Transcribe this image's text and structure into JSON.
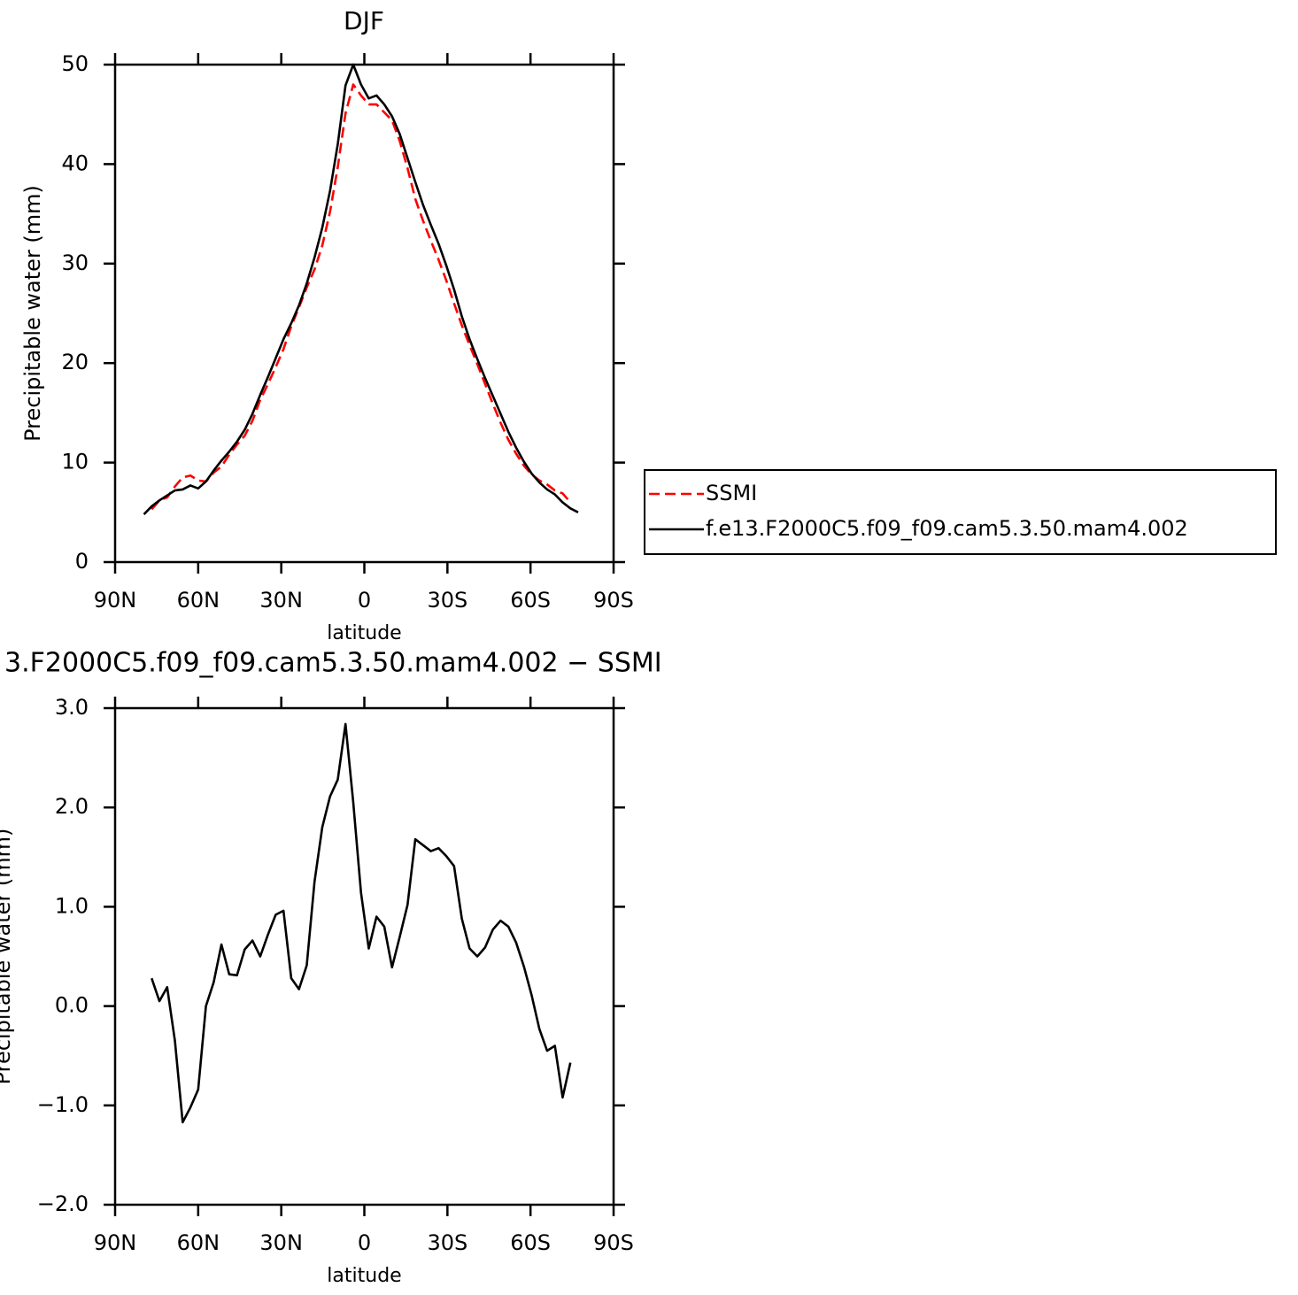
{
  "chart_data": [
    {
      "type": "line",
      "title": "DJF",
      "xlabel": "latitude",
      "ylabel": "Precipitable water (mm)",
      "x": [
        79.6,
        76.8,
        74.0,
        71.2,
        68.4,
        65.6,
        62.8,
        60.0,
        57.2,
        54.4,
        51.6,
        48.8,
        46.0,
        43.2,
        40.4,
        37.6,
        34.8,
        32.0,
        29.2,
        26.4,
        23.6,
        20.8,
        18.0,
        15.2,
        12.4,
        9.6,
        6.8,
        4.0,
        1.2,
        -1.6,
        -4.4,
        -7.2,
        -10.0,
        -12.8,
        -15.6,
        -18.4,
        -21.2,
        -24.0,
        -26.8,
        -29.6,
        -32.4,
        -35.2,
        -38.0,
        -40.8,
        -43.6,
        -46.4,
        -49.2,
        -52.0,
        -54.8,
        -57.6,
        -60.4,
        -63.2,
        -66.0,
        -68.8,
        -71.6,
        -74.4,
        -77.2
      ],
      "series": [
        {
          "name": "SSMI",
          "color": "#ff0000",
          "linestyle": "dashed",
          "values": [
            null,
            5.3,
            6.2,
            6.5,
            7.6,
            8.5,
            8.7,
            8.2,
            8.1,
            9.0,
            9.6,
            10.8,
            11.8,
            12.7,
            14.2,
            16.3,
            17.9,
            19.6,
            21.4,
            23.7,
            25.6,
            27.6,
            29.4,
            31.8,
            35.2,
            39.7,
            45.1,
            48.0,
            46.9,
            46.0,
            46.0,
            45.2,
            44.4,
            42.3,
            39.6,
            36.5,
            34.3,
            32.3,
            30.4,
            28.3,
            26.0,
            23.8,
            21.8,
            19.9,
            17.9,
            15.9,
            14.0,
            12.3,
            10.9,
            9.7,
            8.8,
            8.2,
            7.8,
            7.2,
            6.9,
            6.0,
            null
          ]
        },
        {
          "name": "f.e13.F2000C5.f09_f09.cam5.3.50.mam4.002",
          "color": "#000000",
          "linestyle": "solid",
          "values": [
            4.8,
            5.6,
            6.2,
            6.7,
            7.2,
            7.3,
            7.7,
            7.4,
            8.1,
            9.2,
            10.2,
            11.1,
            12.1,
            13.3,
            14.9,
            16.8,
            18.6,
            20.5,
            22.4,
            24.0,
            25.8,
            28.0,
            30.6,
            33.6,
            37.3,
            42.0,
            47.9,
            50.0,
            48.0,
            46.6,
            46.9,
            46.0,
            44.8,
            43.0,
            40.6,
            38.2,
            35.9,
            33.9,
            32.0,
            29.8,
            27.4,
            24.7,
            22.4,
            20.4,
            18.5,
            16.7,
            14.9,
            13.1,
            11.5,
            10.1,
            8.9,
            8.0,
            7.3,
            6.8,
            6.0,
            5.4,
            5.0
          ]
        }
      ],
      "xlim": [
        90,
        -90
      ],
      "xticks": [
        {
          "value": 90,
          "label": "90N"
        },
        {
          "value": 60,
          "label": "60N"
        },
        {
          "value": 30,
          "label": "30N"
        },
        0,
        {
          "value": -30,
          "label": "30S"
        },
        {
          "value": -60,
          "label": "60S"
        },
        {
          "value": -90,
          "label": "90S"
        }
      ],
      "ylim": [
        0,
        50
      ],
      "yticks": [
        0,
        10,
        20,
        30,
        40,
        50
      ],
      "legend": "right"
    },
    {
      "type": "line",
      "title": "3.F2000C5.f09_f09.cam5.3.50.mam4.002 − SSMI",
      "xlabel": "latitude",
      "ylabel": "Precipitable water (mm)",
      "x": [
        76.8,
        74.0,
        71.2,
        68.4,
        65.6,
        62.8,
        60.0,
        57.2,
        54.4,
        51.6,
        48.8,
        46.0,
        43.2,
        40.4,
        37.6,
        34.8,
        32.0,
        29.2,
        26.4,
        23.6,
        20.8,
        18.0,
        15.2,
        12.4,
        9.6,
        6.8,
        4.0,
        1.2,
        -1.6,
        -4.4,
        -7.2,
        -10.0,
        -12.8,
        -15.6,
        -18.4,
        -21.2,
        -24.0,
        -26.8,
        -29.6,
        -32.4,
        -35.2,
        -38.0,
        -40.8,
        -43.6,
        -46.4,
        -49.2,
        -52.0,
        -54.8,
        -57.6,
        -60.4,
        -63.2,
        -66.0,
        -68.8,
        -71.6,
        -74.4
      ],
      "values": [
        0.28,
        0.05,
        0.19,
        -0.35,
        -1.17,
        -1.02,
        -0.84,
        0.0,
        0.24,
        0.62,
        0.32,
        0.31,
        0.57,
        0.66,
        0.5,
        0.72,
        0.92,
        0.96,
        0.28,
        0.17,
        0.41,
        1.25,
        1.8,
        2.11,
        2.28,
        2.84,
        2.05,
        1.14,
        0.58,
        0.9,
        0.8,
        0.39,
        0.7,
        1.02,
        1.68,
        1.62,
        1.56,
        1.59,
        1.51,
        1.41,
        0.88,
        0.58,
        0.5,
        0.59,
        0.77,
        0.86,
        0.8,
        0.64,
        0.4,
        0.11,
        -0.23,
        -0.45,
        -0.4,
        -0.92,
        -0.57
      ],
      "color": "#000000",
      "xlim": [
        90,
        -90
      ],
      "xticks": [
        {
          "value": 90,
          "label": "90N"
        },
        {
          "value": 60,
          "label": "60N"
        },
        {
          "value": 30,
          "label": "30N"
        },
        0,
        {
          "value": -30,
          "label": "30S"
        },
        {
          "value": -60,
          "label": "60S"
        },
        {
          "value": -90,
          "label": "90S"
        }
      ],
      "ylim": [
        -2,
        3
      ],
      "yticks": [
        {
          "value": -2,
          "label": "−2.0"
        },
        {
          "value": -1,
          "label": "−1.0"
        },
        {
          "value": 0,
          "label": "0.0"
        },
        {
          "value": 1,
          "label": "1.0"
        },
        {
          "value": 2,
          "label": "2.0"
        },
        {
          "value": 3,
          "label": "3.0"
        }
      ]
    }
  ]
}
